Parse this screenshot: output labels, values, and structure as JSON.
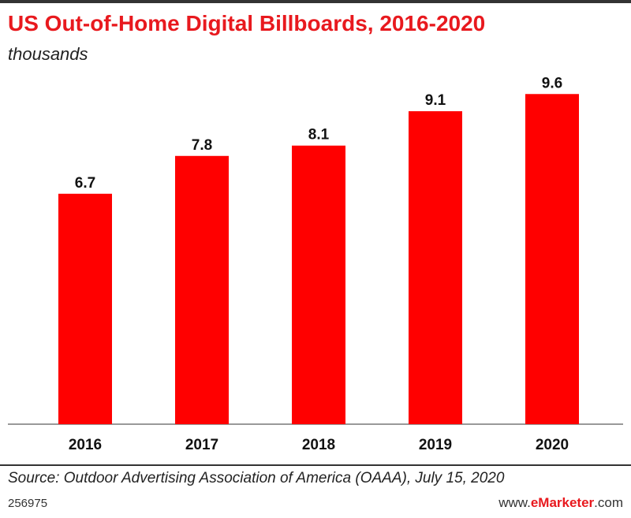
{
  "header": {
    "title": "US Out-of-Home Digital Billboards, 2016-2020",
    "subtitle": "thousands"
  },
  "chart_data": {
    "type": "bar",
    "title": "US Out-of-Home Digital Billboards, 2016-2020",
    "subtitle": "thousands",
    "categories": [
      "2016",
      "2017",
      "2018",
      "2019",
      "2020"
    ],
    "values": [
      6.7,
      7.8,
      8.1,
      9.1,
      9.6
    ],
    "value_labels": [
      "6.7",
      "7.8",
      "8.1",
      "9.1",
      "9.6"
    ],
    "xlabel": "",
    "ylabel": "",
    "ylim": [
      0,
      10.5
    ],
    "grid": false,
    "bar_color": "#ff0000"
  },
  "footer": {
    "source": "Source: Outdoor Advertising Association of America (OAAA), July 15, 2020",
    "chart_id": "256975",
    "brand_prefix": "www.",
    "brand_name": "eMarketer",
    "brand_suffix": ".com"
  }
}
